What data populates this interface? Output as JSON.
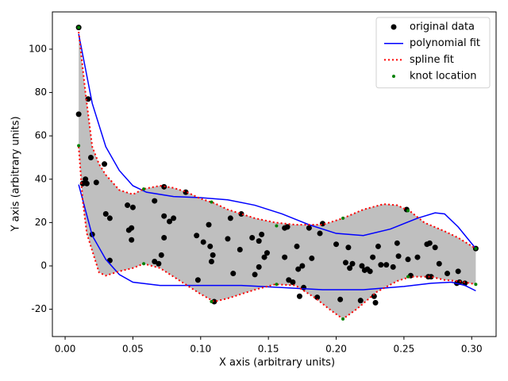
{
  "chart_data": {
    "type": "scatter-fit",
    "xlabel": "X axis (arbitrary units)",
    "ylabel": "Y axis (arbitrary units)",
    "xlim": [
      -0.0094,
      0.318
    ],
    "ylim": [
      -32.6,
      117.2
    ],
    "xticks": [
      {
        "value": 0,
        "label": "0.00"
      },
      {
        "value": 0.05,
        "label": "0.05"
      },
      {
        "value": 0.1,
        "label": "0.10"
      },
      {
        "value": 0.15,
        "label": "0.15"
      },
      {
        "value": 0.2,
        "label": "0.20"
      },
      {
        "value": 0.25,
        "label": "0.25"
      },
      {
        "value": 0.3,
        "label": "0.30"
      }
    ],
    "yticks": [
      -20,
      0,
      20,
      40,
      60,
      80,
      100
    ],
    "legend": "upper right",
    "series": [
      {
        "name": "original data",
        "style": "marker",
        "color": "#000000",
        "curves": [
          {
            "x": [
              0.01,
              0.01,
              0.013,
              0.015,
              0.016,
              0.017,
              0.019,
              0.02,
              0.023,
              0.029,
              0.03,
              0.033,
              0.033,
              0.046,
              0.047,
              0.049,
              0.049,
              0.05,
              0.066,
              0.066,
              0.069,
              0.071,
              0.073,
              0.073,
              0.073,
              0.077,
              0.08,
              0.089,
              0.097,
              0.098,
              0.102,
              0.106,
              0.107,
              0.108,
              0.109,
              0.11,
              0.12,
              0.122,
              0.124,
              0.129,
              0.13,
              0.138,
              0.14,
              0.143,
              0.143,
              0.145,
              0.147,
              0.149,
              0.162,
              0.162,
              0.164,
              0.165,
              0.168,
              0.171,
              0.172,
              0.173,
              0.175,
              0.176,
              0.18,
              0.182,
              0.186,
              0.188,
              0.19,
              0.2,
              0.203,
              0.207,
              0.209,
              0.21,
              0.212,
              0.218,
              0.219,
              0.221,
              0.223,
              0.225,
              0.227,
              0.228,
              0.229,
              0.231,
              0.233,
              0.237,
              0.242,
              0.245,
              0.246,
              0.252,
              0.253,
              0.255,
              0.26,
              0.267,
              0.268,
              0.269,
              0.27,
              0.273,
              0.276,
              0.282,
              0.289,
              0.29,
              0.291,
              0.295,
              0.303
            ],
            "y": [
              110,
              70,
              38,
              40,
              38,
              77,
              50,
              14.5,
              38.5,
              47,
              24,
              22,
              2.5,
              28,
              16.5,
              17.5,
              12,
              27,
              30,
              2,
              1,
              5,
              36.5,
              23,
              13,
              20.5,
              22,
              34,
              14,
              -6.5,
              11,
              19,
              9,
              2,
              5,
              -16.5,
              12.5,
              22,
              -3.5,
              7.5,
              24,
              13,
              -4,
              -0.5,
              11.5,
              14.5,
              4,
              6,
              4,
              17.5,
              18,
              -6.5,
              -7.5,
              9,
              -1.5,
              -14,
              0,
              -10,
              17.5,
              3.5,
              -14.5,
              15,
              19.5,
              10,
              -15.5,
              1.5,
              8.5,
              -1,
              1,
              -16,
              0,
              -2,
              -1.5,
              -2.5,
              4,
              -14,
              -17,
              9,
              0.5,
              0.5,
              -0.5,
              10.5,
              4.5,
              26,
              3,
              -4.5,
              4,
              10,
              -5,
              10.5,
              -5,
              8.5,
              1,
              -3.5,
              -8,
              -2.5,
              -7.5,
              -8,
              8
            ]
          }
        ]
      },
      {
        "name": "polynomial fit",
        "style": "line",
        "color": "#0000ff",
        "curves": [
          {
            "x": [
              0.01,
              0.02,
              0.03,
              0.04,
              0.05,
              0.06,
              0.08,
              0.1,
              0.12,
              0.14,
              0.16,
              0.18,
              0.2,
              0.22,
              0.24,
              0.26,
              0.273,
              0.28,
              0.29,
              0.303
            ],
            "y": [
              107,
              75,
              55,
              44,
              37,
              34,
              32,
              31.5,
              30.5,
              28,
              24,
              19,
              15,
              14,
              17,
              22,
              24.5,
              24,
              18,
              8
            ]
          },
          {
            "x": [
              0.01,
              0.02,
              0.03,
              0.04,
              0.05,
              0.07,
              0.1,
              0.13,
              0.16,
              0.19,
              0.22,
              0.25,
              0.27,
              0.285,
              0.295,
              0.303
            ],
            "y": [
              37.5,
              14,
              3,
              -4,
              -7.5,
              -9,
              -9,
              -9,
              -10,
              -11,
              -11,
              -9.5,
              -8,
              -7.5,
              -9,
              -11.5
            ]
          }
        ]
      },
      {
        "name": "spline fit",
        "style": "dotted",
        "color": "#ff0000",
        "fill": "#bfbfbf",
        "curves": [
          {
            "x": [
              0.01,
              0.015,
              0.02,
              0.025,
              0.03,
              0.04,
              0.05,
              0.058,
              0.07,
              0.08,
              0.09,
              0.1,
              0.11,
              0.12,
              0.14,
              0.155,
              0.17,
              0.19,
              0.205,
              0.22,
              0.235,
              0.245,
              0.255,
              0.265,
              0.28,
              0.29,
              0.303
            ],
            "y": [
              108,
              80,
              55,
              47,
              42,
              35,
              33,
              35.5,
              37,
              36,
              34,
              31,
              29,
              26,
              22,
              20,
              19,
              19,
              22,
              26,
              28.5,
              28,
              25,
              20,
              16,
              13,
              8
            ]
          },
          {
            "x": [
              0.01,
              0.013,
              0.016,
              0.02,
              0.025,
              0.03,
              0.04,
              0.05,
              0.058,
              0.07,
              0.085,
              0.1,
              0.11,
              0.12,
              0.14,
              0.155,
              0.17,
              0.185,
              0.195,
              0.205,
              0.215,
              0.23,
              0.245,
              0.255,
              0.27,
              0.28,
              0.29,
              0.303
            ],
            "y": [
              55,
              30,
              15,
              7,
              -3,
              -4.5,
              -2.5,
              -1,
              1,
              -1,
              -7,
              -13,
              -16.5,
              -15,
              -11,
              -8.5,
              -9,
              -15,
              -20,
              -24.5,
              -20,
              -12,
              -7,
              -5,
              -5,
              -6.5,
              -7,
              -8.5
            ]
          }
        ]
      },
      {
        "name": "knot location",
        "style": "small-marker",
        "color": "#008000",
        "curves": [
          {
            "x": [
              0.01,
              0.01,
              0.058,
              0.058,
              0.108,
              0.108,
              0.156,
              0.156,
              0.205,
              0.205,
              0.253,
              0.253,
              0.303,
              0.303
            ],
            "y": [
              110,
              55.5,
              35.5,
              1,
              29.5,
              -16.5,
              18.5,
              -8.5,
              22,
              -24.5,
              25.5,
              -5,
              8,
              -8.5
            ]
          }
        ]
      }
    ]
  }
}
